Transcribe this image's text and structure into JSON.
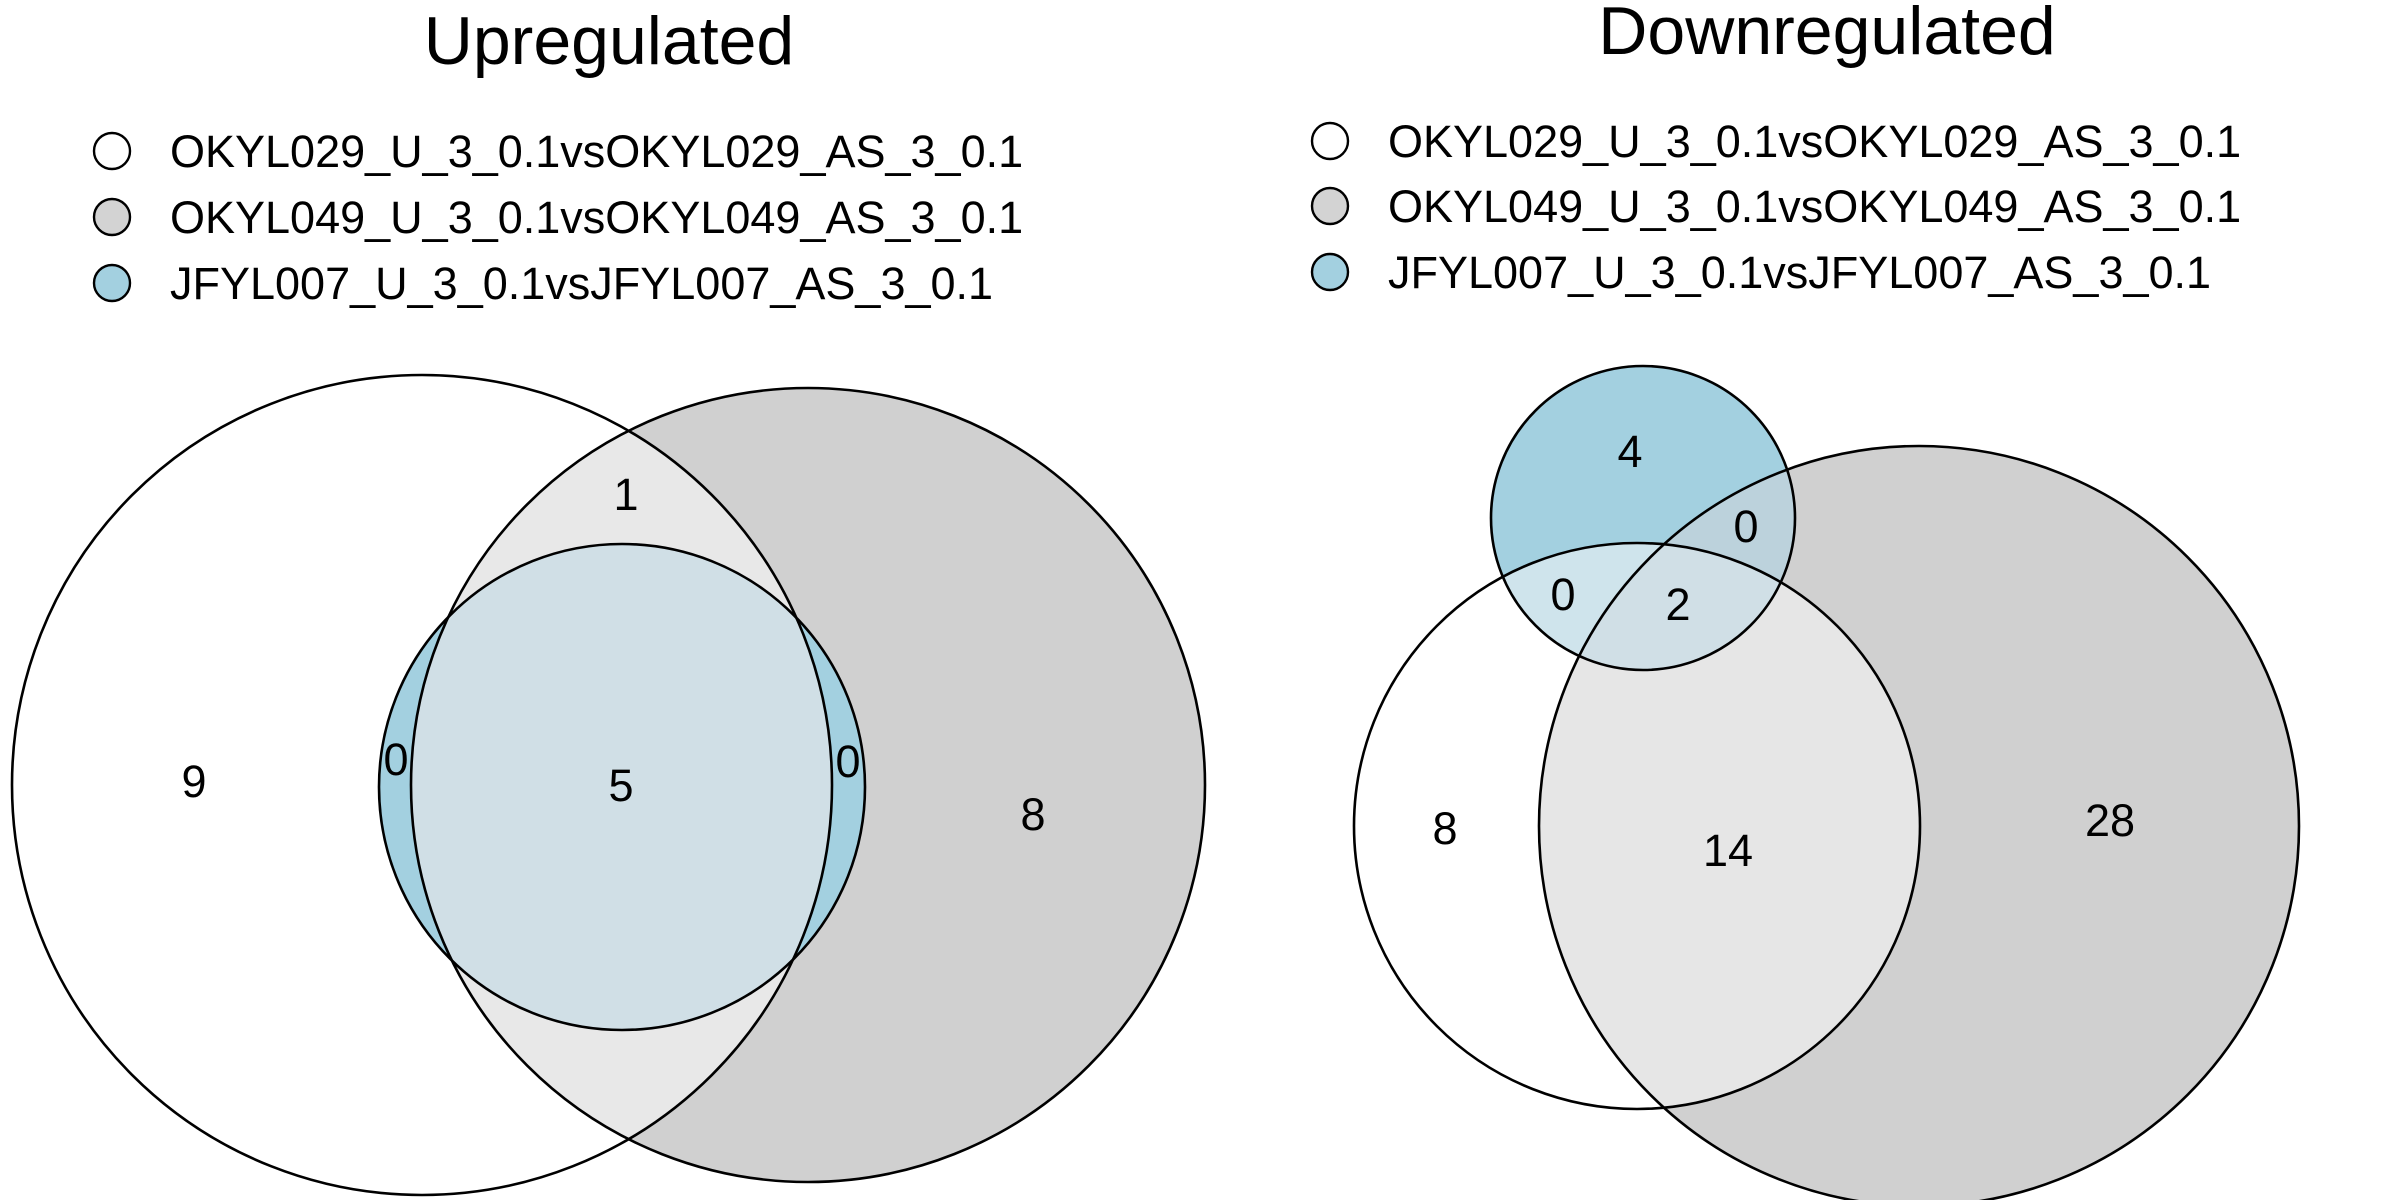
{
  "panels": [
    {
      "title": "Upregulated",
      "sets": [
        {
          "label": "OKYL029_U_3_0.1vsOKYL029_AS_3_0.1",
          "color": "#ffffff"
        },
        {
          "label": "OKYL049_U_3_0.1vsOKYL049_AS_3_0.1",
          "color": "#d3d3d3"
        },
        {
          "label": "JFYL007_U_3_0.1vsJFYL007_AS_3_0.1",
          "color": "#a3d0e0"
        }
      ],
      "regions": {
        "only_1": "9",
        "only_2": "8",
        "only_3": "",
        "r1_2": "1",
        "r1_3": "0",
        "r2_3": "0",
        "r1_2_3": "5"
      }
    },
    {
      "title": "Downregulated",
      "sets": [
        {
          "label": "OKYL029_U_3_0.1vsOKYL029_AS_3_0.1",
          "color": "#ffffff"
        },
        {
          "label": "OKYL049_U_3_0.1vsOKYL049_AS_3_0.1",
          "color": "#d3d3d3"
        },
        {
          "label": "JFYL007_U_3_0.1vsJFYL007_AS_3_0.1",
          "color": "#a3d0e0"
        }
      ],
      "regions": {
        "only_1": "8",
        "only_2": "28",
        "only_3": "4",
        "r1_2": "14",
        "r1_3": "0",
        "r2_3": "0",
        "r1_2_3": "2"
      }
    }
  ]
}
